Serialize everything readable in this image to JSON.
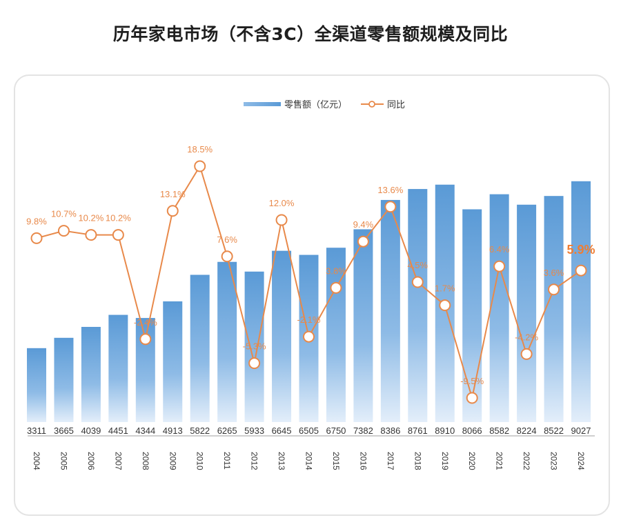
{
  "title": "历年家电市场（不含3C）全渠道零售额规模及同比",
  "chart_data": {
    "type": "bar+line",
    "title": "历年家电市场（不含3C）全渠道零售额规模及同比",
    "categories": [
      "2004",
      "2005",
      "2006",
      "2007",
      "2008",
      "2009",
      "2010",
      "2011",
      "2012",
      "2013",
      "2014",
      "2015",
      "2016",
      "2017",
      "2018",
      "2019",
      "2020",
      "2021",
      "2022",
      "2023",
      "2024"
    ],
    "series": [
      {
        "name": "零售额（亿元）",
        "type": "bar",
        "color": "#5b9bd5",
        "values": [
          3311,
          3665,
          4039,
          4451,
          4344,
          4913,
          5822,
          6265,
          5933,
          6645,
          6505,
          6750,
          7382,
          8386,
          8761,
          8910,
          8066,
          8582,
          8224,
          8522,
          9027
        ]
      },
      {
        "name": "同比",
        "type": "line",
        "color": "#e8894a",
        "values": [
          9.8,
          10.7,
          10.2,
          10.2,
          -2.4,
          13.1,
          18.5,
          7.6,
          -5.3,
          12.0,
          -2.1,
          3.8,
          9.4,
          13.6,
          4.5,
          1.7,
          -9.5,
          6.4,
          -4.2,
          3.6,
          5.9
        ],
        "labels": [
          "9.8%",
          "10.7%",
          "10.2%",
          "10.2%",
          "-2.4%",
          "13.1%",
          "18.5%",
          "7.6%",
          "-5.3%",
          "12.0%",
          "-2.1%",
          "3.8%",
          "9.4%",
          "13.6%",
          "4.5%",
          "1.7%",
          "-9.5%",
          "6.4%",
          "-4.2%",
          "3.6%",
          "5.9%"
        ]
      }
    ],
    "legend": [
      "零售额（亿元）",
      "同比"
    ],
    "legend_position": "top-center",
    "bar_ylim": [
      800,
      9500
    ],
    "line_ylim": [
      -12,
      22
    ],
    "grid": false
  }
}
